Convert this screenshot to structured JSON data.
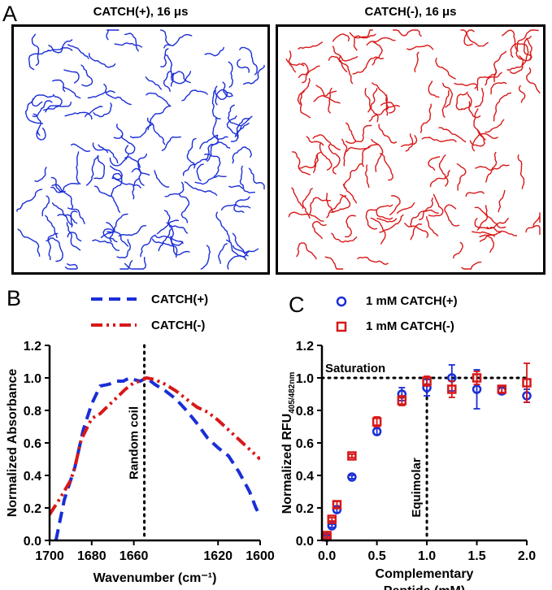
{
  "panel_labels": {
    "a": "A",
    "b": "B",
    "c": "C"
  },
  "panel_a": {
    "left_title": "CATCH(+), 16 μs",
    "right_title": "CATCH(-), 16 μs",
    "left_color": "#1a2ed6",
    "right_color": "#d81818"
  },
  "chart_data": [
    {
      "type": "line",
      "panel": "B",
      "xlabel": "Wavenumber (cm⁻¹)",
      "ylabel": "Normalized Absorbance",
      "xlim": [
        1700,
        1600
      ],
      "ylim": [
        0.0,
        1.2
      ],
      "x_reversed": true,
      "xticks": [
        1700,
        1680,
        1660,
        1620,
        1600
      ],
      "yticks": [
        0.0,
        0.2,
        0.4,
        0.6,
        0.8,
        1.0,
        1.2
      ],
      "annotation": "Random coil",
      "reference_line_x": 1655,
      "series": [
        {
          "name": "CATCH(+)",
          "color": "#1a2ed6",
          "style": "dash",
          "x": [
            1697,
            1693,
            1688,
            1684,
            1680,
            1676,
            1672,
            1668,
            1665,
            1662,
            1660,
            1657,
            1654,
            1650,
            1645,
            1640,
            1635,
            1630,
            1625,
            1620,
            1615,
            1610,
            1605,
            1602,
            1600
          ],
          "y": [
            0.0,
            0.25,
            0.45,
            0.68,
            0.84,
            0.95,
            0.96,
            0.98,
            0.98,
            1.0,
            0.99,
            0.98,
            1.0,
            0.96,
            0.92,
            0.87,
            0.8,
            0.72,
            0.63,
            0.57,
            0.52,
            0.42,
            0.3,
            0.2,
            0.15
          ]
        },
        {
          "name": "CATCH(-)",
          "color": "#d81818",
          "style": "dashdotdot",
          "x": [
            1700,
            1695,
            1690,
            1688,
            1685,
            1680,
            1676,
            1672,
            1668,
            1664,
            1660,
            1657,
            1654,
            1650,
            1645,
            1640,
            1635,
            1630,
            1625,
            1620,
            1615,
            1610,
            1605,
            1600
          ],
          "y": [
            0.16,
            0.26,
            0.37,
            0.45,
            0.62,
            0.75,
            0.78,
            0.83,
            0.88,
            0.93,
            0.97,
            0.98,
            1.0,
            0.99,
            0.96,
            0.92,
            0.87,
            0.82,
            0.79,
            0.74,
            0.68,
            0.62,
            0.56,
            0.5
          ]
        }
      ]
    },
    {
      "type": "scatter",
      "panel": "C",
      "xlabel_line1": "Complementary",
      "xlabel_line2": "Peptide (mM)",
      "ylabel": "Normalized RFU",
      "ylabel_sub": "405/482nm",
      "xlim": [
        -0.05,
        2.0
      ],
      "ylim": [
        0.0,
        1.2
      ],
      "xticks": [
        0.0,
        0.5,
        1.0,
        1.5,
        2.0
      ],
      "yticks": [
        0.0,
        0.2,
        0.4,
        0.6,
        0.8,
        1.0,
        1.2
      ],
      "annotation_saturation": "Saturation",
      "annotation_equimolar": "Equimolar",
      "saturation_y": 1.0,
      "equimolar_x": 1.0,
      "series": [
        {
          "name": "1 mM CATCH(+)",
          "color": "#1a2ed6",
          "marker": "circle",
          "x": [
            0.0,
            0.05,
            0.1,
            0.25,
            0.5,
            0.75,
            1.0,
            1.25,
            1.5,
            1.75,
            2.0
          ],
          "y": [
            0.02,
            0.09,
            0.19,
            0.39,
            0.67,
            0.9,
            0.94,
            1.0,
            0.93,
            0.92,
            0.89
          ],
          "err": [
            0.01,
            0.01,
            0.02,
            0.01,
            0.02,
            0.04,
            0.05,
            0.08,
            0.12,
            0.02,
            0.04
          ]
        },
        {
          "name": "1 mM CATCH(-)",
          "color": "#d81818",
          "marker": "square",
          "x": [
            0.0,
            0.05,
            0.1,
            0.25,
            0.5,
            0.75,
            1.0,
            1.25,
            1.5,
            1.75,
            2.0
          ],
          "y": [
            0.03,
            0.13,
            0.22,
            0.52,
            0.73,
            0.86,
            0.98,
            0.93,
            1.0,
            0.93,
            0.97
          ],
          "err": [
            0.01,
            0.01,
            0.02,
            0.01,
            0.03,
            0.03,
            0.03,
            0.05,
            0.04,
            0.02,
            0.12
          ]
        }
      ]
    }
  ]
}
